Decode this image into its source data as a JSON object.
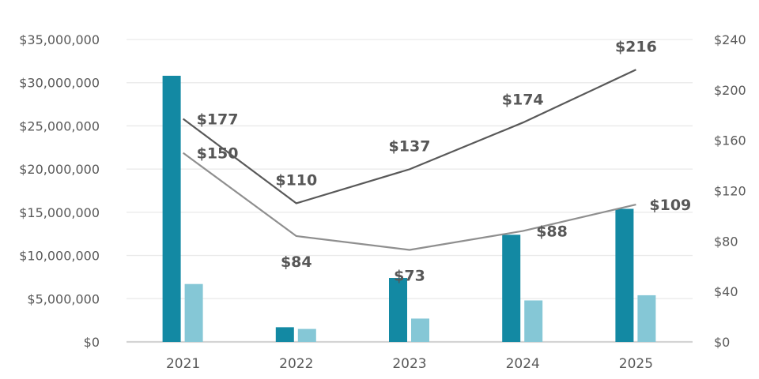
{
  "chart_data": {
    "type": "combo-bar-line",
    "title": "",
    "legend": "none",
    "grid": "horizontal",
    "categories": [
      "2021",
      "2022",
      "2023",
      "2024",
      "2025"
    ],
    "bar_series": [
      {
        "name": "dark-teal-bars",
        "color": "#1389a3",
        "axis": "left",
        "values": [
          30800000,
          1700000,
          7400000,
          12400000,
          15400000
        ]
      },
      {
        "name": "light-teal-bars",
        "color": "#85c7d6",
        "axis": "left",
        "values": [
          6700000,
          1500000,
          2700000,
          4800000,
          5400000
        ]
      }
    ],
    "line_series": [
      {
        "name": "dark-gray-line",
        "color": "#595959",
        "axis": "right",
        "values": [
          177,
          110,
          137,
          174,
          216
        ],
        "labels": [
          "$177",
          "$110",
          "$137",
          "$174",
          "$216"
        ],
        "label_pos": [
          "right",
          "above",
          "above",
          "above",
          "above"
        ]
      },
      {
        "name": "light-gray-line",
        "color": "#8f8f8f",
        "axis": "right",
        "values": [
          150,
          84,
          73,
          88,
          109
        ],
        "labels": [
          "$150",
          "$84",
          "$73",
          "$88",
          "$109"
        ],
        "label_pos": [
          "right",
          "below",
          "below",
          "right",
          "right"
        ]
      }
    ],
    "left_axis": {
      "min": 0,
      "max": 35000000,
      "tick_labels": [
        "$0",
        "$5,000,000",
        "$10,000,000",
        "$15,000,000",
        "$20,000,000",
        "$25,000,000",
        "$30,000,000",
        "$35,000,000"
      ]
    },
    "right_axis": {
      "min": 0,
      "max": 240,
      "tick_labels": [
        "$0",
        "$40",
        "$80",
        "$120",
        "$160",
        "$200",
        "$240"
      ]
    },
    "colors": {
      "gridline": "#e9e9e9",
      "axis_line": "#d4d4d4",
      "tick_text": "#595959",
      "data_label_text": "#575757"
    }
  }
}
